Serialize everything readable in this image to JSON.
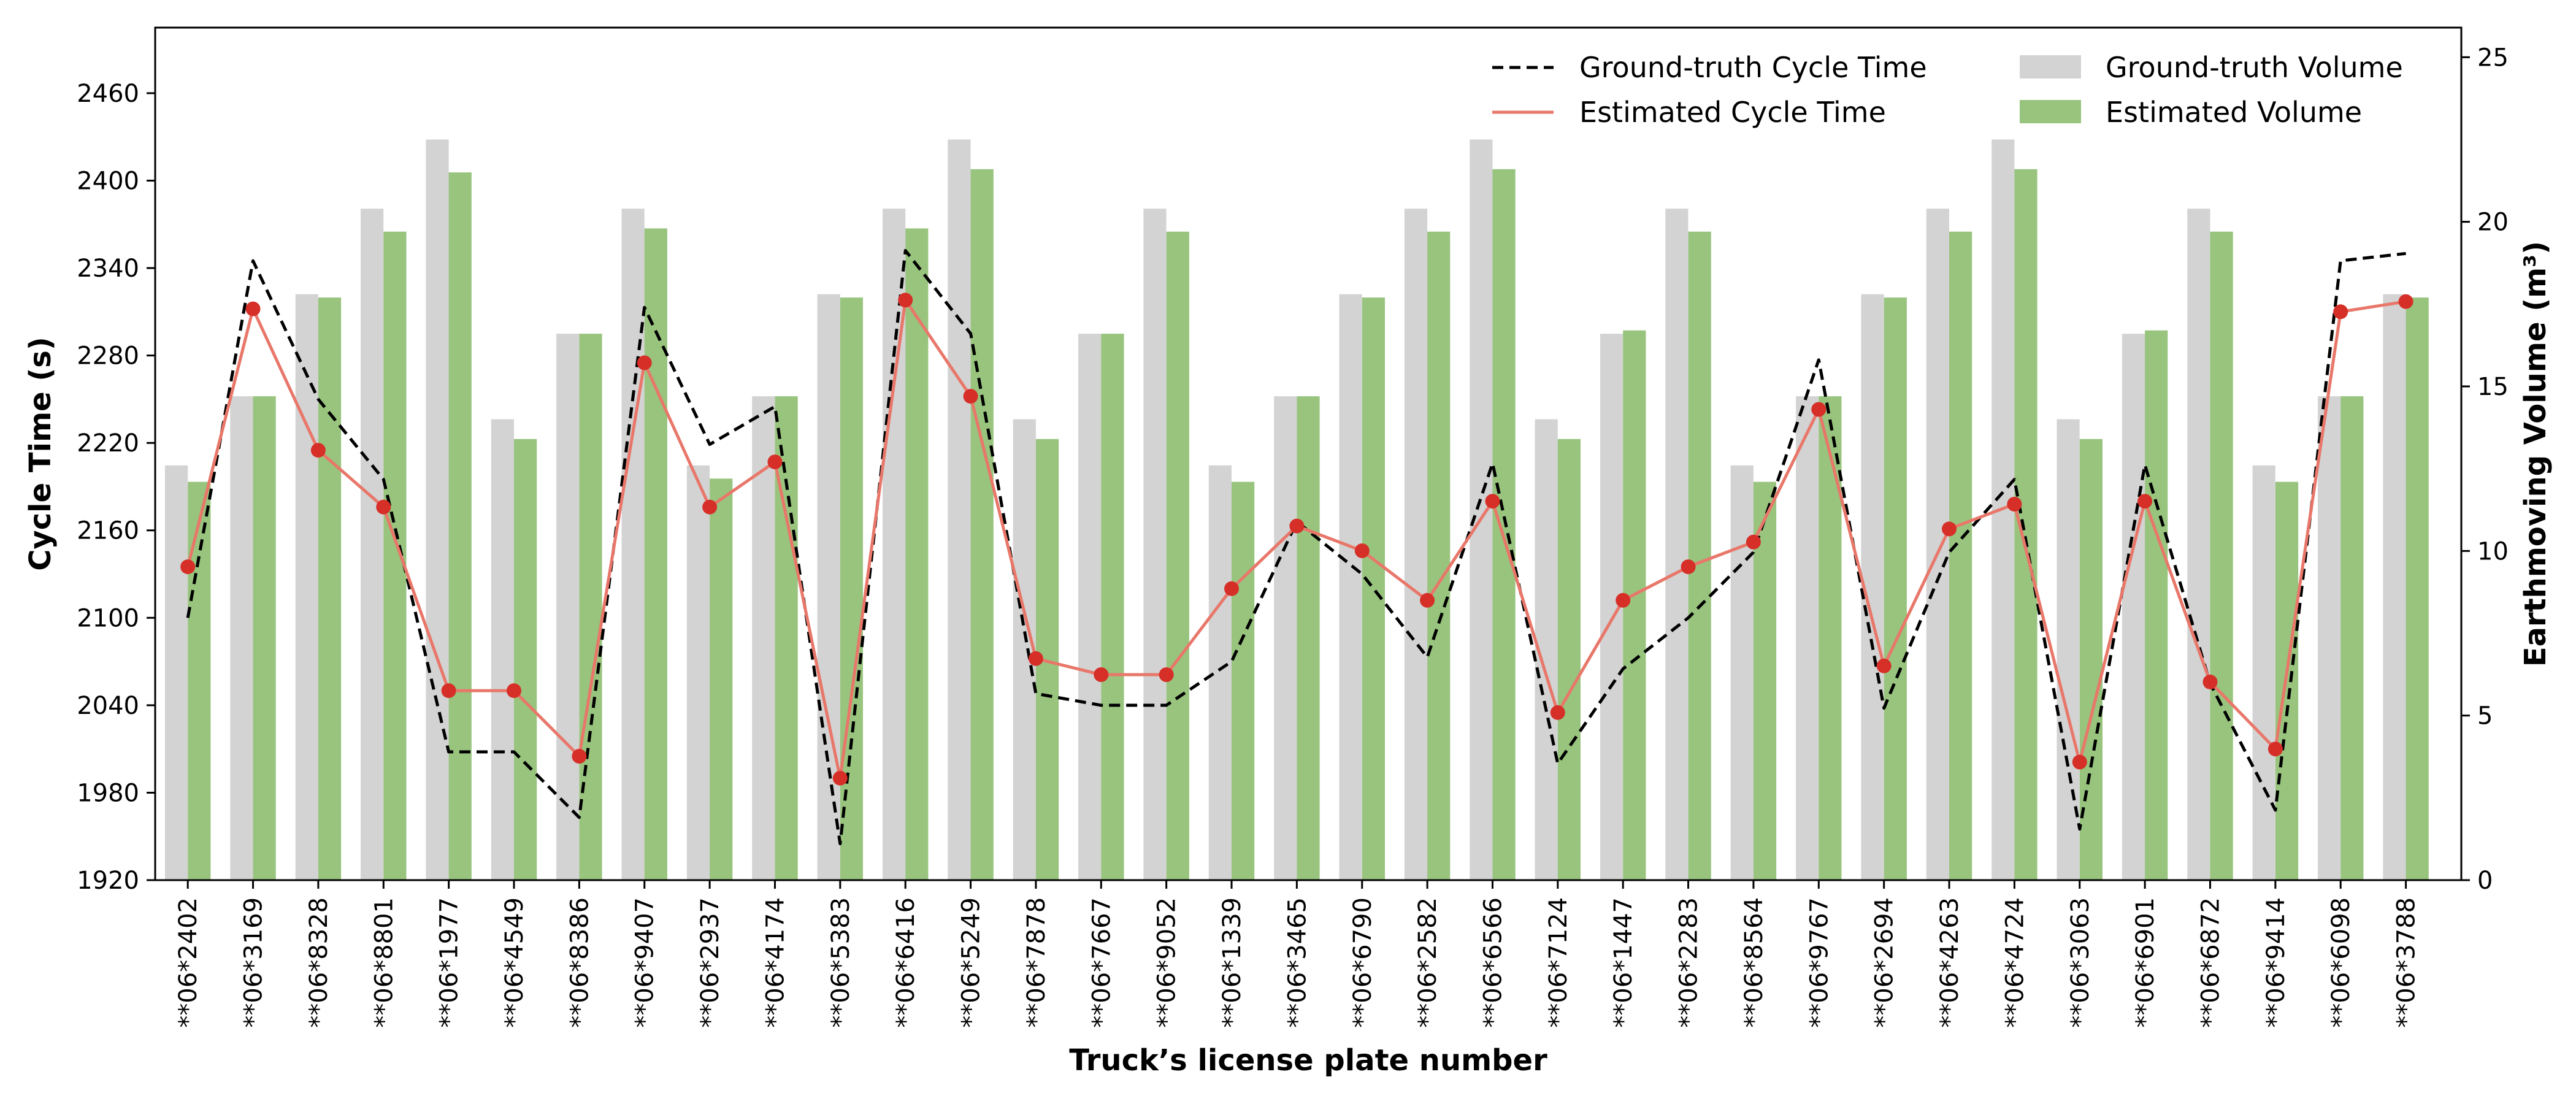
{
  "chart_data": {
    "type": "bar",
    "title": "",
    "xlabel": "Truck’s license plate number",
    "ylabel_left": "Cycle Time (s)",
    "ylabel_right": "Earthmoving Volume (m³)",
    "ylim_left": [
      1920,
      2505
    ],
    "ylim_right": [
      0,
      25.9
    ],
    "yticks_left": [
      1920,
      1980,
      2040,
      2100,
      2160,
      2220,
      2280,
      2340,
      2400,
      2460
    ],
    "yticks_right": [
      0,
      5,
      10,
      15,
      20,
      25
    ],
    "grid": false,
    "legend_position": "top-right",
    "categories": [
      "**06*2402",
      "**06*3169",
      "**06*8328",
      "**06*8801",
      "**06*1977",
      "**06*4549",
      "**06*8386",
      "**06*9407",
      "**06*2937",
      "**06*4174",
      "**06*5383",
      "**06*6416",
      "**06*5249",
      "**06*7878",
      "**06*7667",
      "**06*9052",
      "**06*1339",
      "**06*3465",
      "**06*6790",
      "**06*2582",
      "**06*6566",
      "**06*7124",
      "**06*1447",
      "**06*2283",
      "**06*8564",
      "**06*9767",
      "**06*2694",
      "**06*4263",
      "**06*4724",
      "**06*3063",
      "**06*6901",
      "**06*6872",
      "**06*9414",
      "**06*6098",
      "**06*3788"
    ],
    "series": [
      {
        "name": "Ground-truth Cycle Time",
        "kind": "line",
        "axis": "left",
        "style": "dashed",
        "color": "#000000",
        "values": [
          2100,
          2345,
          2250,
          2195,
          2008,
          2008,
          1963,
          2313,
          2219,
          2245,
          1945,
          2352,
          2295,
          2048,
          2040,
          2040,
          2070,
          2166,
          2130,
          2073,
          2206,
          2000,
          2065,
          2100,
          2145,
          2277,
          2038,
          2145,
          2195,
          1955,
          2205,
          2055,
          1968,
          2345,
          2350
        ]
      },
      {
        "name": "Estimated Cycle Time",
        "kind": "line",
        "axis": "left",
        "style": "solid-marker",
        "color": "#e8776a",
        "marker_color": "#d62f28",
        "values": [
          2135,
          2312,
          2215,
          2176,
          2050,
          2050,
          2005,
          2275,
          2176,
          2207,
          1990,
          2318,
          2252,
          2072,
          2061,
          2061,
          2120,
          2163,
          2146,
          2112,
          2180,
          2035,
          2112,
          2135,
          2152,
          2243,
          2067,
          2161,
          2178,
          2001,
          2180,
          2056,
          2010,
          2310,
          2317
        ]
      },
      {
        "name": "Ground-truth Volume",
        "kind": "bar",
        "axis": "right",
        "color": "#d3d3d3",
        "values": [
          12.6,
          14.7,
          17.8,
          20.4,
          22.5,
          14.0,
          16.6,
          20.4,
          12.6,
          14.7,
          17.8,
          20.4,
          22.5,
          14.0,
          16.6,
          20.4,
          12.6,
          14.7,
          17.8,
          20.4,
          22.5,
          14.0,
          16.6,
          20.4,
          12.6,
          14.7,
          17.8,
          20.4,
          22.5,
          14.0,
          16.6,
          20.4,
          12.6,
          14.7,
          17.8
        ]
      },
      {
        "name": "Estimated Volume",
        "kind": "bar",
        "axis": "right",
        "color": "#98c47e",
        "values": [
          12.1,
          14.7,
          17.7,
          19.7,
          21.5,
          13.4,
          16.6,
          19.8,
          12.2,
          14.7,
          17.7,
          19.8,
          21.6,
          13.4,
          16.6,
          19.7,
          12.1,
          14.7,
          17.7,
          19.7,
          21.6,
          13.4,
          16.7,
          19.7,
          12.1,
          14.7,
          17.7,
          19.7,
          21.6,
          13.4,
          16.7,
          19.7,
          12.1,
          14.7,
          17.7
        ]
      }
    ]
  }
}
